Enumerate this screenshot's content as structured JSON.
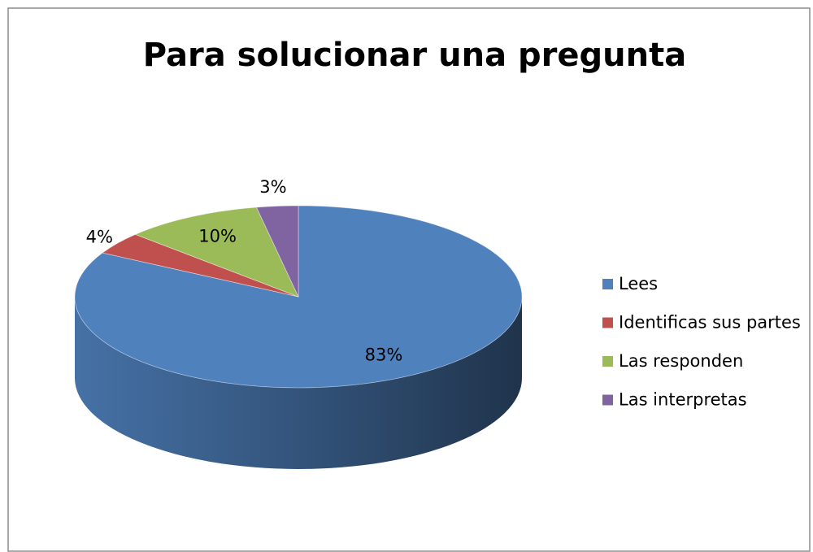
{
  "chart_data": {
    "type": "pie",
    "title": "Para solucionar una pregunta",
    "categories": [
      "Lees",
      "Identificas sus partes",
      "Las responden",
      "Las interpretas"
    ],
    "values": [
      83,
      4,
      10,
      3
    ],
    "value_labels": [
      "83%",
      "4%",
      "10%",
      "3%"
    ],
    "colors": [
      "#4f81bd",
      "#c0504d",
      "#9bbb59",
      "#8064a2"
    ],
    "legend": "right"
  }
}
